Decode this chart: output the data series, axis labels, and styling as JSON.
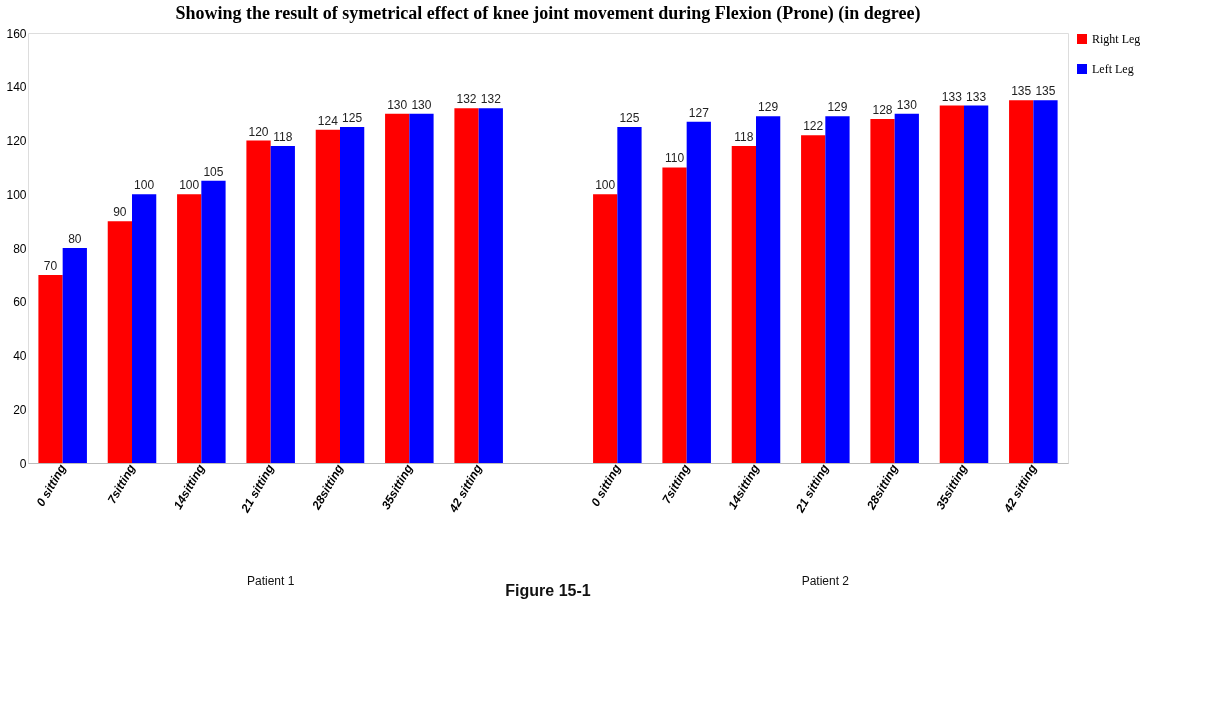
{
  "chart_data": {
    "type": "bar",
    "title": "Showing the result of  symetrical effect of knee joint movement during Flexion (Prone) (in degree)",
    "categories": [
      "0 sitting",
      "7sitting",
      "14sitting",
      "21 sitting",
      "28sitting",
      "35sitting",
      "42 sitting",
      null,
      "0 sitting",
      "7sitting",
      "14sitting",
      "21 sitting",
      "28sitting",
      "35sitting",
      "42 sitting"
    ],
    "series": [
      {
        "name": "Right Leg",
        "color": "#ff0000",
        "values": [
          70,
          90,
          100,
          120,
          124,
          130,
          132,
          null,
          100,
          110,
          118,
          122,
          128,
          133,
          135
        ]
      },
      {
        "name": "Left Leg",
        "color": "#0000ff",
        "values": [
          80,
          100,
          105,
          118,
          125,
          130,
          132,
          null,
          125,
          127,
          129,
          129,
          130,
          133,
          135
        ]
      }
    ],
    "annotations": [
      "Patient 1",
      "Patient 2",
      "Figure 15-1"
    ],
    "ylim": [
      0,
      160
    ],
    "yticks": [
      0,
      20,
      40,
      60,
      80,
      100,
      120,
      140,
      160
    ],
    "grid": false,
    "legend": "top right",
    "data_labels": true
  }
}
